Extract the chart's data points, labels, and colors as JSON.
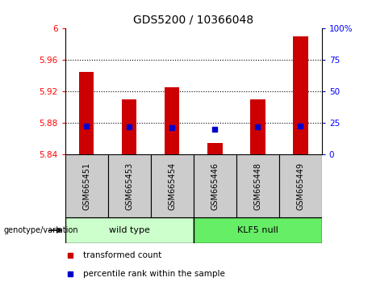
{
  "title": "GDS5200 / 10366048",
  "categories": [
    "GSM665451",
    "GSM665453",
    "GSM665454",
    "GSM665446",
    "GSM665448",
    "GSM665449"
  ],
  "bar_bottom": 5.84,
  "bar_tops": [
    5.945,
    5.91,
    5.925,
    5.855,
    5.91,
    5.99
  ],
  "percentile_values": [
    5.876,
    5.875,
    5.874,
    5.872,
    5.875,
    5.876
  ],
  "ylim": [
    5.84,
    6.0
  ],
  "yticks_left": [
    5.84,
    5.88,
    5.92,
    5.96,
    6.0
  ],
  "yticks_left_labels": [
    "5.84",
    "5.88",
    "5.92",
    "5.96",
    "6"
  ],
  "yticks_right": [
    0,
    25,
    50,
    75,
    100
  ],
  "yticks_right_labels": [
    "0",
    "25",
    "50",
    "75",
    "100%"
  ],
  "bar_color": "#cc0000",
  "percentile_color": "#0000cc",
  "wild_type_label": "wild type",
  "klf5_null_label": "KLF5 null",
  "genotype_label": "genotype/variation",
  "legend_bar_label": "transformed count",
  "legend_pct_label": "percentile rank within the sample",
  "wild_type_color": "#ccffcc",
  "klf5_null_color": "#66ee66",
  "xlabel_area_color": "#cccccc",
  "bar_width": 0.35,
  "n_wild": 3,
  "n_klf": 3
}
